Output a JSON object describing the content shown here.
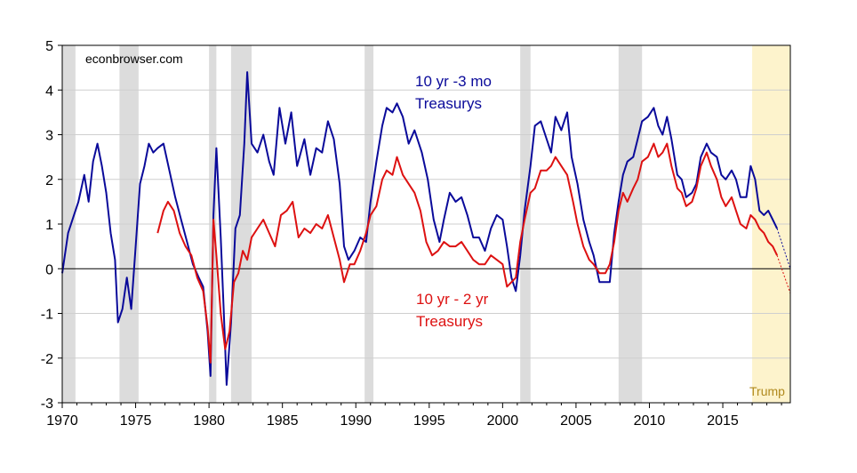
{
  "chart_data": {
    "type": "line",
    "title": "",
    "xlabel": "",
    "ylabel": "",
    "xlim": [
      1970,
      2019.6
    ],
    "ylim": [
      -3,
      5
    ],
    "x_ticks": [
      1970,
      1975,
      1980,
      1985,
      1990,
      1995,
      2000,
      2005,
      2010,
      2015
    ],
    "y_ticks": [
      -3,
      -2,
      -1,
      0,
      1,
      2,
      3,
      4,
      5
    ],
    "watermark": "econbrowser.com",
    "recessions": [
      [
        1970.0,
        1970.9
      ],
      [
        1973.9,
        1975.2
      ],
      [
        1980.0,
        1980.5
      ],
      [
        1981.5,
        1982.9
      ],
      [
        1990.6,
        1991.2
      ],
      [
        2001.2,
        2001.9
      ],
      [
        2007.9,
        2009.5
      ]
    ],
    "trump_period": {
      "start": 2017.0,
      "end": 2019.6,
      "label": "Trump",
      "color": "#fdf3cc"
    },
    "series": [
      {
        "name": "10 yr -3 mo Treasurys",
        "label_lines": [
          "10 yr -3 mo",
          "Treasurys"
        ],
        "color": "#0a0a9a",
        "points": [
          [
            1970.0,
            -0.1
          ],
          [
            1970.4,
            0.8
          ],
          [
            1970.8,
            1.2
          ],
          [
            1971.1,
            1.5
          ],
          [
            1971.5,
            2.1
          ],
          [
            1971.8,
            1.5
          ],
          [
            1972.1,
            2.4
          ],
          [
            1972.4,
            2.8
          ],
          [
            1972.7,
            2.3
          ],
          [
            1973.0,
            1.7
          ],
          [
            1973.3,
            0.8
          ],
          [
            1973.6,
            0.2
          ],
          [
            1973.8,
            -1.2
          ],
          [
            1974.1,
            -0.9
          ],
          [
            1974.4,
            -0.2
          ],
          [
            1974.7,
            -0.9
          ],
          [
            1975.0,
            0.5
          ],
          [
            1975.3,
            1.9
          ],
          [
            1975.6,
            2.3
          ],
          [
            1975.9,
            2.8
          ],
          [
            1976.2,
            2.6
          ],
          [
            1976.5,
            2.7
          ],
          [
            1976.9,
            2.8
          ],
          [
            1977.3,
            2.2
          ],
          [
            1977.7,
            1.6
          ],
          [
            1978.1,
            1.1
          ],
          [
            1978.5,
            0.6
          ],
          [
            1978.9,
            0.1
          ],
          [
            1979.3,
            -0.2
          ],
          [
            1979.6,
            -0.4
          ],
          [
            1979.9,
            -1.4
          ],
          [
            1980.1,
            -2.4
          ],
          [
            1980.3,
            1.2
          ],
          [
            1980.5,
            2.7
          ],
          [
            1980.8,
            0.7
          ],
          [
            1981.0,
            -0.9
          ],
          [
            1981.2,
            -2.6
          ],
          [
            1981.5,
            -1.2
          ],
          [
            1981.8,
            0.9
          ],
          [
            1982.1,
            1.2
          ],
          [
            1982.4,
            2.8
          ],
          [
            1982.6,
            4.4
          ],
          [
            1982.9,
            2.8
          ],
          [
            1983.3,
            2.6
          ],
          [
            1983.7,
            3.0
          ],
          [
            1984.1,
            2.4
          ],
          [
            1984.4,
            2.1
          ],
          [
            1984.8,
            3.6
          ],
          [
            1985.2,
            2.8
          ],
          [
            1985.6,
            3.5
          ],
          [
            1986.0,
            2.3
          ],
          [
            1986.5,
            2.9
          ],
          [
            1986.9,
            2.1
          ],
          [
            1987.3,
            2.7
          ],
          [
            1987.7,
            2.6
          ],
          [
            1988.1,
            3.3
          ],
          [
            1988.5,
            2.9
          ],
          [
            1988.9,
            1.9
          ],
          [
            1989.2,
            0.5
          ],
          [
            1989.5,
            0.2
          ],
          [
            1989.9,
            0.4
          ],
          [
            1990.3,
            0.7
          ],
          [
            1990.7,
            0.6
          ],
          [
            1991.0,
            1.5
          ],
          [
            1991.4,
            2.4
          ],
          [
            1991.8,
            3.2
          ],
          [
            1992.1,
            3.6
          ],
          [
            1992.5,
            3.5
          ],
          [
            1992.8,
            3.7
          ],
          [
            1993.2,
            3.4
          ],
          [
            1993.6,
            2.8
          ],
          [
            1994.0,
            3.1
          ],
          [
            1994.5,
            2.6
          ],
          [
            1994.9,
            2.0
          ],
          [
            1995.3,
            1.1
          ],
          [
            1995.7,
            0.6
          ],
          [
            1996.0,
            1.1
          ],
          [
            1996.4,
            1.7
          ],
          [
            1996.8,
            1.5
          ],
          [
            1997.2,
            1.6
          ],
          [
            1997.6,
            1.2
          ],
          [
            1998.0,
            0.7
          ],
          [
            1998.4,
            0.7
          ],
          [
            1998.8,
            0.4
          ],
          [
            1999.2,
            0.9
          ],
          [
            1999.6,
            1.2
          ],
          [
            2000.0,
            1.1
          ],
          [
            2000.3,
            0.5
          ],
          [
            2000.6,
            -0.2
          ],
          [
            2000.9,
            -0.5
          ],
          [
            2001.2,
            0.3
          ],
          [
            2001.5,
            1.3
          ],
          [
            2001.9,
            2.3
          ],
          [
            2002.2,
            3.2
          ],
          [
            2002.6,
            3.3
          ],
          [
            2003.0,
            2.9
          ],
          [
            2003.3,
            2.6
          ],
          [
            2003.6,
            3.4
          ],
          [
            2004.0,
            3.1
          ],
          [
            2004.4,
            3.5
          ],
          [
            2004.7,
            2.5
          ],
          [
            2005.1,
            1.9
          ],
          [
            2005.5,
            1.1
          ],
          [
            2005.9,
            0.6
          ],
          [
            2006.2,
            0.3
          ],
          [
            2006.6,
            -0.3
          ],
          [
            2007.0,
            -0.3
          ],
          [
            2007.3,
            -0.3
          ],
          [
            2007.6,
            0.8
          ],
          [
            2007.9,
            1.5
          ],
          [
            2008.2,
            2.1
          ],
          [
            2008.5,
            2.4
          ],
          [
            2008.9,
            2.5
          ],
          [
            2009.2,
            2.9
          ],
          [
            2009.5,
            3.3
          ],
          [
            2009.9,
            3.4
          ],
          [
            2010.3,
            3.6
          ],
          [
            2010.6,
            3.2
          ],
          [
            2010.9,
            3.0
          ],
          [
            2011.2,
            3.4
          ],
          [
            2011.5,
            2.9
          ],
          [
            2011.9,
            2.1
          ],
          [
            2012.2,
            2.0
          ],
          [
            2012.5,
            1.6
          ],
          [
            2012.9,
            1.7
          ],
          [
            2013.2,
            1.9
          ],
          [
            2013.5,
            2.5
          ],
          [
            2013.9,
            2.8
          ],
          [
            2014.2,
            2.6
          ],
          [
            2014.6,
            2.5
          ],
          [
            2014.9,
            2.1
          ],
          [
            2015.2,
            2.0
          ],
          [
            2015.6,
            2.2
          ],
          [
            2015.9,
            2.0
          ],
          [
            2016.2,
            1.6
          ],
          [
            2016.6,
            1.6
          ],
          [
            2016.9,
            2.3
          ],
          [
            2017.2,
            2.0
          ],
          [
            2017.5,
            1.3
          ],
          [
            2017.8,
            1.2
          ],
          [
            2018.1,
            1.3
          ],
          [
            2018.4,
            1.1
          ],
          [
            2018.7,
            0.9
          ]
        ],
        "projection": [
          [
            2018.7,
            0.9
          ],
          [
            2019.6,
            0.0
          ]
        ]
      },
      {
        "name": "10 yr - 2 yr Treasurys",
        "label_lines": [
          "10 yr - 2 yr",
          "Treasurys"
        ],
        "color": "#dd1111",
        "points": [
          [
            1976.5,
            0.8
          ],
          [
            1976.9,
            1.3
          ],
          [
            1977.2,
            1.5
          ],
          [
            1977.6,
            1.3
          ],
          [
            1978.0,
            0.8
          ],
          [
            1978.4,
            0.5
          ],
          [
            1978.8,
            0.3
          ],
          [
            1979.2,
            -0.2
          ],
          [
            1979.6,
            -0.5
          ],
          [
            1979.9,
            -1.3
          ],
          [
            1980.1,
            -2.1
          ],
          [
            1980.3,
            1.1
          ],
          [
            1980.5,
            0.3
          ],
          [
            1980.8,
            -1.0
          ],
          [
            1981.1,
            -1.8
          ],
          [
            1981.4,
            -1.4
          ],
          [
            1981.7,
            -0.3
          ],
          [
            1982.0,
            -0.1
          ],
          [
            1982.3,
            0.4
          ],
          [
            1982.6,
            0.2
          ],
          [
            1982.9,
            0.7
          ],
          [
            1983.3,
            0.9
          ],
          [
            1983.7,
            1.1
          ],
          [
            1984.1,
            0.8
          ],
          [
            1984.5,
            0.5
          ],
          [
            1984.9,
            1.2
          ],
          [
            1985.3,
            1.3
          ],
          [
            1985.7,
            1.5
          ],
          [
            1986.1,
            0.7
          ],
          [
            1986.5,
            0.9
          ],
          [
            1986.9,
            0.8
          ],
          [
            1987.3,
            1.0
          ],
          [
            1987.7,
            0.9
          ],
          [
            1988.1,
            1.2
          ],
          [
            1988.5,
            0.7
          ],
          [
            1988.9,
            0.2
          ],
          [
            1989.2,
            -0.3
          ],
          [
            1989.6,
            0.1
          ],
          [
            1989.9,
            0.1
          ],
          [
            1990.3,
            0.4
          ],
          [
            1990.7,
            0.8
          ],
          [
            1991.0,
            1.2
          ],
          [
            1991.4,
            1.4
          ],
          [
            1991.8,
            2.0
          ],
          [
            1992.1,
            2.2
          ],
          [
            1992.5,
            2.1
          ],
          [
            1992.8,
            2.5
          ],
          [
            1993.2,
            2.1
          ],
          [
            1993.6,
            1.9
          ],
          [
            1994.0,
            1.7
          ],
          [
            1994.4,
            1.3
          ],
          [
            1994.8,
            0.6
          ],
          [
            1995.2,
            0.3
          ],
          [
            1995.6,
            0.4
          ],
          [
            1996.0,
            0.6
          ],
          [
            1996.4,
            0.5
          ],
          [
            1996.8,
            0.5
          ],
          [
            1997.2,
            0.6
          ],
          [
            1997.6,
            0.4
          ],
          [
            1998.0,
            0.2
          ],
          [
            1998.4,
            0.1
          ],
          [
            1998.8,
            0.1
          ],
          [
            1999.2,
            0.3
          ],
          [
            1999.6,
            0.2
          ],
          [
            2000.0,
            0.1
          ],
          [
            2000.3,
            -0.4
          ],
          [
            2000.6,
            -0.3
          ],
          [
            2000.9,
            -0.2
          ],
          [
            2001.2,
            0.6
          ],
          [
            2001.5,
            1.1
          ],
          [
            2001.9,
            1.7
          ],
          [
            2002.2,
            1.8
          ],
          [
            2002.6,
            2.2
          ],
          [
            2003.0,
            2.2
          ],
          [
            2003.3,
            2.3
          ],
          [
            2003.6,
            2.5
          ],
          [
            2004.0,
            2.3
          ],
          [
            2004.4,
            2.1
          ],
          [
            2004.8,
            1.5
          ],
          [
            2005.1,
            1.0
          ],
          [
            2005.5,
            0.5
          ],
          [
            2005.9,
            0.2
          ],
          [
            2006.2,
            0.1
          ],
          [
            2006.6,
            -0.1
          ],
          [
            2007.0,
            -0.1
          ],
          [
            2007.3,
            0.1
          ],
          [
            2007.6,
            0.6
          ],
          [
            2007.9,
            1.3
          ],
          [
            2008.2,
            1.7
          ],
          [
            2008.5,
            1.5
          ],
          [
            2008.9,
            1.8
          ],
          [
            2009.2,
            2.0
          ],
          [
            2009.5,
            2.4
          ],
          [
            2009.9,
            2.5
          ],
          [
            2010.3,
            2.8
          ],
          [
            2010.6,
            2.5
          ],
          [
            2010.9,
            2.6
          ],
          [
            2011.2,
            2.8
          ],
          [
            2011.5,
            2.3
          ],
          [
            2011.9,
            1.8
          ],
          [
            2012.2,
            1.7
          ],
          [
            2012.5,
            1.4
          ],
          [
            2012.9,
            1.5
          ],
          [
            2013.2,
            1.8
          ],
          [
            2013.5,
            2.3
          ],
          [
            2013.9,
            2.6
          ],
          [
            2014.2,
            2.3
          ],
          [
            2014.6,
            2.0
          ],
          [
            2014.9,
            1.6
          ],
          [
            2015.2,
            1.4
          ],
          [
            2015.6,
            1.6
          ],
          [
            2015.9,
            1.3
          ],
          [
            2016.2,
            1.0
          ],
          [
            2016.6,
            0.9
          ],
          [
            2016.9,
            1.2
          ],
          [
            2017.2,
            1.1
          ],
          [
            2017.5,
            0.9
          ],
          [
            2017.8,
            0.8
          ],
          [
            2018.1,
            0.6
          ],
          [
            2018.4,
            0.5
          ],
          [
            2018.7,
            0.3
          ]
        ],
        "projection": [
          [
            2018.7,
            0.3
          ],
          [
            2019.6,
            -0.55
          ]
        ]
      }
    ]
  }
}
